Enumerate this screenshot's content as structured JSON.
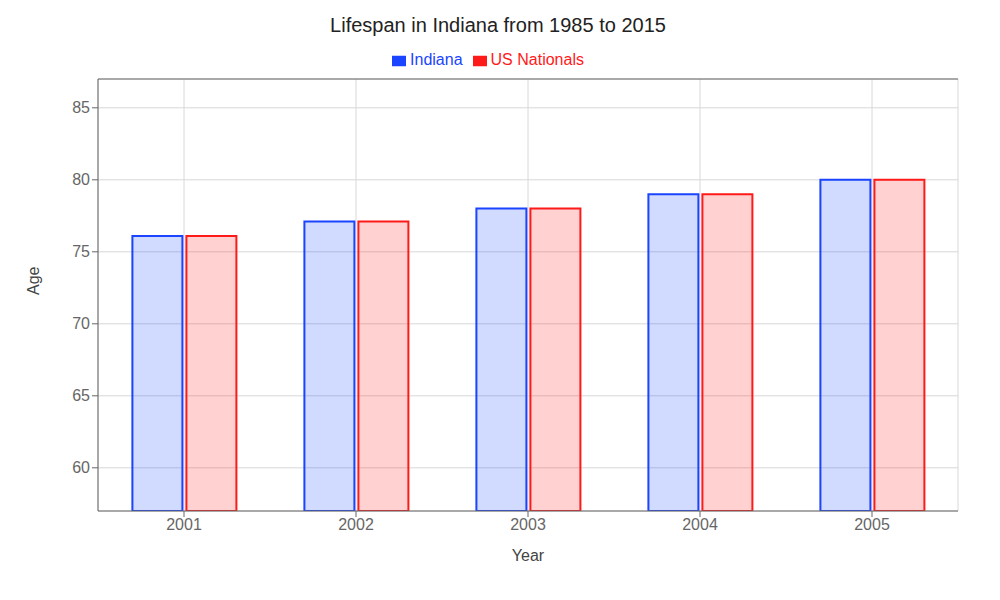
{
  "chart_data": {
    "type": "bar",
    "title": "Lifespan in Indiana from 1985 to 2015",
    "x_label": "Year",
    "y_label": "Age",
    "categories": [
      "2001",
      "2002",
      "2003",
      "2004",
      "2005"
    ],
    "series": [
      {
        "name": "Indiana",
        "color": "#1a44ff",
        "values": [
          76.1,
          77.1,
          78.0,
          79.0,
          80.0
        ]
      },
      {
        "name": "US Nationals",
        "color": "#ff1a1a",
        "values": [
          76.1,
          77.1,
          78.0,
          79.0,
          80.0
        ]
      }
    ],
    "ylim": [
      57,
      87
    ],
    "yticks": [
      60,
      65,
      70,
      75,
      80,
      85
    ],
    "grid": true,
    "legend": "top"
  }
}
